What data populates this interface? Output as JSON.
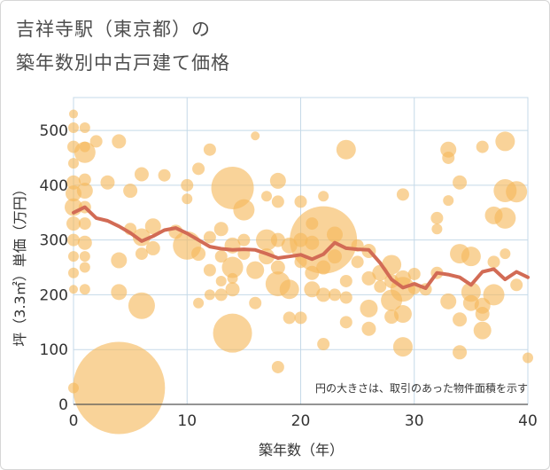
{
  "title": {
    "line1": "吉祥寺駅（東京都）の",
    "line2": "築年数別中古戸建て価格"
  },
  "chart_data": {
    "type": "scatter",
    "title": "吉祥寺駅（東京都）の築年数別中古戸建て価格",
    "xlabel": "築年数（年）",
    "ylabel": "坪（3.3㎡）単価（万円）",
    "xlim": [
      0,
      40
    ],
    "ylim": [
      0,
      560
    ],
    "x_ticks": [
      0,
      10,
      20,
      30,
      40
    ],
    "y_ticks": [
      0,
      100,
      200,
      300,
      400,
      500
    ],
    "grid": true,
    "note": "円の大きさは、取引のあった物件面積を示す",
    "colors": {
      "bubble": "#f5b85a",
      "line": "#d26b55",
      "grid": "#c5d9e8",
      "text": "#4d4d4d"
    },
    "bubbles": [
      {
        "x": 0,
        "y": 530,
        "r": 5
      },
      {
        "x": 0,
        "y": 505,
        "r": 6
      },
      {
        "x": 0,
        "y": 470,
        "r": 7
      },
      {
        "x": 0,
        "y": 440,
        "r": 6
      },
      {
        "x": 0,
        "y": 405,
        "r": 8
      },
      {
        "x": 0,
        "y": 385,
        "r": 9
      },
      {
        "x": 0,
        "y": 360,
        "r": 10
      },
      {
        "x": 0,
        "y": 330,
        "r": 8
      },
      {
        "x": 0,
        "y": 300,
        "r": 7
      },
      {
        "x": 0,
        "y": 270,
        "r": 6
      },
      {
        "x": 0,
        "y": 240,
        "r": 6
      },
      {
        "x": 0,
        "y": 210,
        "r": 5
      },
      {
        "x": 0,
        "y": 30,
        "r": 6
      },
      {
        "x": 1,
        "y": 505,
        "r": 6
      },
      {
        "x": 1,
        "y": 470,
        "r": 6
      },
      {
        "x": 1,
        "y": 460,
        "r": 12
      },
      {
        "x": 1,
        "y": 410,
        "r": 7
      },
      {
        "x": 1,
        "y": 390,
        "r": 9
      },
      {
        "x": 1,
        "y": 360,
        "r": 7
      },
      {
        "x": 1,
        "y": 330,
        "r": 7
      },
      {
        "x": 1,
        "y": 295,
        "r": 8
      },
      {
        "x": 1,
        "y": 270,
        "r": 6
      },
      {
        "x": 1,
        "y": 250,
        "r": 6
      },
      {
        "x": 1,
        "y": 210,
        "r": 6
      },
      {
        "x": 2,
        "y": 480,
        "r": 7
      },
      {
        "x": 3,
        "y": 405,
        "r": 8
      },
      {
        "x": 4,
        "y": 480,
        "r": 8
      },
      {
        "x": 4,
        "y": 263,
        "r": 9
      },
      {
        "x": 4,
        "y": 205,
        "r": 9
      },
      {
        "x": 4,
        "y": 30,
        "r": 52
      },
      {
        "x": 5,
        "y": 390,
        "r": 8
      },
      {
        "x": 5,
        "y": 320,
        "r": 7
      },
      {
        "x": 6,
        "y": 420,
        "r": 8
      },
      {
        "x": 6,
        "y": 305,
        "r": 10
      },
      {
        "x": 6,
        "y": 275,
        "r": 7
      },
      {
        "x": 6,
        "y": 180,
        "r": 15
      },
      {
        "x": 7,
        "y": 325,
        "r": 9
      },
      {
        "x": 7,
        "y": 285,
        "r": 8
      },
      {
        "x": 8,
        "y": 418,
        "r": 7
      },
      {
        "x": 9,
        "y": 315,
        "r": 8
      },
      {
        "x": 10,
        "y": 400,
        "r": 7
      },
      {
        "x": 10,
        "y": 375,
        "r": 6
      },
      {
        "x": 10,
        "y": 290,
        "r": 16
      },
      {
        "x": 11,
        "y": 430,
        "r": 7
      },
      {
        "x": 11,
        "y": 275,
        "r": 8
      },
      {
        "x": 11,
        "y": 185,
        "r": 6
      },
      {
        "x": 12,
        "y": 465,
        "r": 7
      },
      {
        "x": 12,
        "y": 305,
        "r": 7
      },
      {
        "x": 12,
        "y": 245,
        "r": 7
      },
      {
        "x": 12,
        "y": 200,
        "r": 6
      },
      {
        "x": 13,
        "y": 320,
        "r": 8
      },
      {
        "x": 13,
        "y": 270,
        "r": 7
      },
      {
        "x": 13,
        "y": 225,
        "r": 6
      },
      {
        "x": 13,
        "y": 200,
        "r": 7
      },
      {
        "x": 14,
        "y": 395,
        "r": 24
      },
      {
        "x": 14,
        "y": 290,
        "r": 9
      },
      {
        "x": 14,
        "y": 250,
        "r": 12
      },
      {
        "x": 14,
        "y": 230,
        "r": 6
      },
      {
        "x": 14,
        "y": 210,
        "r": 8
      },
      {
        "x": 14,
        "y": 130,
        "r": 22
      },
      {
        "x": 15,
        "y": 355,
        "r": 12
      },
      {
        "x": 15,
        "y": 300,
        "r": 7
      },
      {
        "x": 15,
        "y": 275,
        "r": 7
      },
      {
        "x": 16,
        "y": 490,
        "r": 5
      },
      {
        "x": 16,
        "y": 245,
        "r": 10
      },
      {
        "x": 16,
        "y": 185,
        "r": 7
      },
      {
        "x": 17,
        "y": 380,
        "r": 6
      },
      {
        "x": 17,
        "y": 300,
        "r": 12
      },
      {
        "x": 17,
        "y": 270,
        "r": 9
      },
      {
        "x": 18,
        "y": 408,
        "r": 9
      },
      {
        "x": 18,
        "y": 370,
        "r": 7
      },
      {
        "x": 18,
        "y": 300,
        "r": 8
      },
      {
        "x": 18,
        "y": 250,
        "r": 8
      },
      {
        "x": 18,
        "y": 220,
        "r": 14
      },
      {
        "x": 18,
        "y": 68,
        "r": 7
      },
      {
        "x": 19,
        "y": 290,
        "r": 9
      },
      {
        "x": 19,
        "y": 210,
        "r": 11
      },
      {
        "x": 19,
        "y": 158,
        "r": 7
      },
      {
        "x": 20,
        "y": 370,
        "r": 7
      },
      {
        "x": 20,
        "y": 300,
        "r": 8
      },
      {
        "x": 20,
        "y": 260,
        "r": 7
      },
      {
        "x": 20,
        "y": 158,
        "r": 7
      },
      {
        "x": 21,
        "y": 330,
        "r": 7
      },
      {
        "x": 21,
        "y": 295,
        "r": 8
      },
      {
        "x": 21,
        "y": 240,
        "r": 8
      },
      {
        "x": 21,
        "y": 210,
        "r": 9
      },
      {
        "x": 22,
        "y": 380,
        "r": 6
      },
      {
        "x": 22,
        "y": 300,
        "r": 38
      },
      {
        "x": 22,
        "y": 250,
        "r": 8
      },
      {
        "x": 22,
        "y": 200,
        "r": 8
      },
      {
        "x": 22,
        "y": 110,
        "r": 7
      },
      {
        "x": 23,
        "y": 310,
        "r": 9
      },
      {
        "x": 23,
        "y": 270,
        "r": 8
      },
      {
        "x": 23,
        "y": 200,
        "r": 7
      },
      {
        "x": 24,
        "y": 465,
        "r": 11
      },
      {
        "x": 24,
        "y": 225,
        "r": 7
      },
      {
        "x": 24,
        "y": 195,
        "r": 7
      },
      {
        "x": 24,
        "y": 150,
        "r": 7
      },
      {
        "x": 25,
        "y": 290,
        "r": 7
      },
      {
        "x": 25,
        "y": 260,
        "r": 7
      },
      {
        "x": 26,
        "y": 280,
        "r": 8
      },
      {
        "x": 26,
        "y": 230,
        "r": 8
      },
      {
        "x": 26,
        "y": 175,
        "r": 10
      },
      {
        "x": 26,
        "y": 138,
        "r": 8
      },
      {
        "x": 27,
        "y": 240,
        "r": 9
      },
      {
        "x": 27,
        "y": 215,
        "r": 7
      },
      {
        "x": 28,
        "y": 255,
        "r": 11
      },
      {
        "x": 28,
        "y": 225,
        "r": 8
      },
      {
        "x": 28,
        "y": 190,
        "r": 12
      },
      {
        "x": 28,
        "y": 160,
        "r": 8
      },
      {
        "x": 29,
        "y": 383,
        "r": 7
      },
      {
        "x": 29,
        "y": 230,
        "r": 9
      },
      {
        "x": 29,
        "y": 210,
        "r": 14
      },
      {
        "x": 29,
        "y": 165,
        "r": 10
      },
      {
        "x": 29,
        "y": 105,
        "r": 11
      },
      {
        "x": 30,
        "y": 238,
        "r": 7
      },
      {
        "x": 30,
        "y": 212,
        "r": 7
      },
      {
        "x": 31,
        "y": 210,
        "r": 7
      },
      {
        "x": 32,
        "y": 340,
        "r": 7
      },
      {
        "x": 32,
        "y": 320,
        "r": 6
      },
      {
        "x": 32,
        "y": 240,
        "r": 7
      },
      {
        "x": 33,
        "y": 465,
        "r": 9
      },
      {
        "x": 33,
        "y": 450,
        "r": 7
      },
      {
        "x": 33,
        "y": 372,
        "r": 6
      },
      {
        "x": 33,
        "y": 188,
        "r": 9
      },
      {
        "x": 34,
        "y": 405,
        "r": 8
      },
      {
        "x": 34,
        "y": 275,
        "r": 11
      },
      {
        "x": 34,
        "y": 155,
        "r": 8
      },
      {
        "x": 34,
        "y": 95,
        "r": 8
      },
      {
        "x": 35,
        "y": 270,
        "r": 11
      },
      {
        "x": 35,
        "y": 205,
        "r": 11
      },
      {
        "x": 35,
        "y": 185,
        "r": 9
      },
      {
        "x": 36,
        "y": 470,
        "r": 7
      },
      {
        "x": 36,
        "y": 180,
        "r": 9
      },
      {
        "x": 36,
        "y": 165,
        "r": 8
      },
      {
        "x": 36,
        "y": 135,
        "r": 10
      },
      {
        "x": 37,
        "y": 345,
        "r": 10
      },
      {
        "x": 37,
        "y": 260,
        "r": 7
      },
      {
        "x": 37,
        "y": 200,
        "r": 12
      },
      {
        "x": 38,
        "y": 480,
        "r": 11
      },
      {
        "x": 38,
        "y": 390,
        "r": 13
      },
      {
        "x": 38,
        "y": 340,
        "r": 12
      },
      {
        "x": 38,
        "y": 275,
        "r": 6
      },
      {
        "x": 39,
        "y": 388,
        "r": 12
      },
      {
        "x": 39,
        "y": 218,
        "r": 7
      },
      {
        "x": 40,
        "y": 85,
        "r": 6
      }
    ],
    "series": [
      {
        "values": [
          {
            "x": 0,
            "y": 350
          },
          {
            "x": 1,
            "y": 360
          },
          {
            "x": 2,
            "y": 340
          },
          {
            "x": 3,
            "y": 335
          },
          {
            "x": 4,
            "y": 325
          },
          {
            "x": 5,
            "y": 313
          },
          {
            "x": 6,
            "y": 298
          },
          {
            "x": 7,
            "y": 307
          },
          {
            "x": 8,
            "y": 318
          },
          {
            "x": 9,
            "y": 322
          },
          {
            "x": 10,
            "y": 312
          },
          {
            "x": 11,
            "y": 300
          },
          {
            "x": 12,
            "y": 288
          },
          {
            "x": 13,
            "y": 284
          },
          {
            "x": 14,
            "y": 282
          },
          {
            "x": 15,
            "y": 283
          },
          {
            "x": 16,
            "y": 282
          },
          {
            "x": 17,
            "y": 275
          },
          {
            "x": 18,
            "y": 267
          },
          {
            "x": 19,
            "y": 270
          },
          {
            "x": 20,
            "y": 273
          },
          {
            "x": 21,
            "y": 265
          },
          {
            "x": 22,
            "y": 274
          },
          {
            "x": 23,
            "y": 295
          },
          {
            "x": 24,
            "y": 285
          },
          {
            "x": 25,
            "y": 283
          },
          {
            "x": 26,
            "y": 282
          },
          {
            "x": 27,
            "y": 258
          },
          {
            "x": 28,
            "y": 228
          },
          {
            "x": 29,
            "y": 213
          },
          {
            "x": 30,
            "y": 220
          },
          {
            "x": 31,
            "y": 212
          },
          {
            "x": 32,
            "y": 240
          },
          {
            "x": 33,
            "y": 237
          },
          {
            "x": 34,
            "y": 232
          },
          {
            "x": 35,
            "y": 218
          },
          {
            "x": 36,
            "y": 242
          },
          {
            "x": 37,
            "y": 247
          },
          {
            "x": 38,
            "y": 228
          },
          {
            "x": 39,
            "y": 242
          },
          {
            "x": 40,
            "y": 232
          }
        ]
      }
    ]
  }
}
